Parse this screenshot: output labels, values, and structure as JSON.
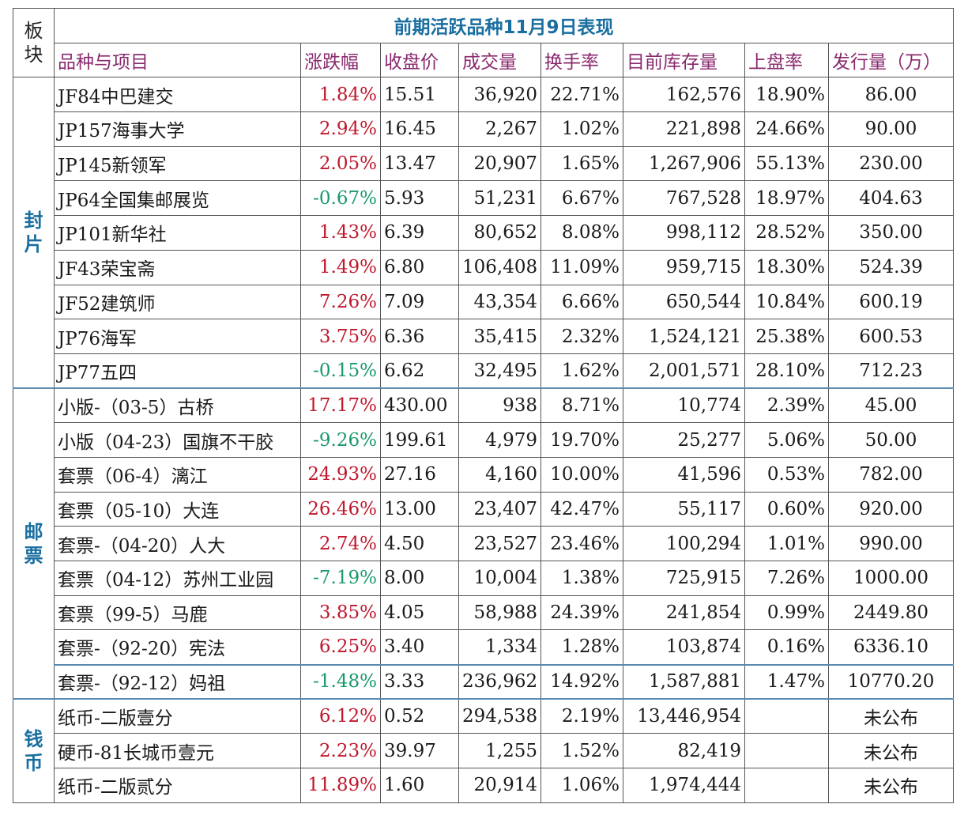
{
  "title": "前期活跃品种11月9日表现",
  "headers": {
    "sector": "板块",
    "name": "品种与项目",
    "change": "涨跌幅",
    "close": "收盘价",
    "volume": "成交量",
    "turnover": "换手率",
    "inventory": "目前库存量",
    "listing_rate": "上盘率",
    "issue": "发行量（万）"
  },
  "sectors": {
    "fengpian": "封片",
    "youpiao": "邮票",
    "qianbi": "钱币"
  },
  "rows": [
    {
      "name": "JF84中巴建交",
      "change": "1.84%",
      "close": "15.51",
      "volume": "36,920",
      "turnover": "22.71%",
      "inventory": "162,576",
      "listing_rate": "18.90%",
      "issue": "86.00",
      "dir": "up"
    },
    {
      "name": "JP157海事大学",
      "change": "2.94%",
      "close": "16.45",
      "volume": "2,267",
      "turnover": "1.02%",
      "inventory": "221,898",
      "listing_rate": "24.66%",
      "issue": "90.00",
      "dir": "up"
    },
    {
      "name": "JP145新领军",
      "change": "2.05%",
      "close": "13.47",
      "volume": "20,907",
      "turnover": "1.65%",
      "inventory": "1,267,906",
      "listing_rate": "55.13%",
      "issue": "230.00",
      "dir": "up"
    },
    {
      "name": "JP64全国集邮展览",
      "change": "-0.67%",
      "close": "5.93",
      "volume": "51,231",
      "turnover": "6.67%",
      "inventory": "767,528",
      "listing_rate": "18.97%",
      "issue": "404.63",
      "dir": "down"
    },
    {
      "name": "JP101新华社",
      "change": "1.43%",
      "close": "6.39",
      "volume": "80,652",
      "turnover": "8.08%",
      "inventory": "998,112",
      "listing_rate": "28.52%",
      "issue": "350.00",
      "dir": "up"
    },
    {
      "name": "JF43荣宝斋",
      "change": "1.49%",
      "close": "6.80",
      "volume": "106,408",
      "turnover": "11.09%",
      "inventory": "959,715",
      "listing_rate": "18.30%",
      "issue": "524.39",
      "dir": "up"
    },
    {
      "name": "JF52建筑师",
      "change": "7.26%",
      "close": "7.09",
      "volume": "43,354",
      "turnover": "6.66%",
      "inventory": "650,544",
      "listing_rate": "10.84%",
      "issue": "600.19",
      "dir": "up"
    },
    {
      "name": "JP76海军",
      "change": "3.75%",
      "close": "6.36",
      "volume": "35,415",
      "turnover": "2.32%",
      "inventory": "1,524,121",
      "listing_rate": "25.38%",
      "issue": "600.53",
      "dir": "up"
    },
    {
      "name": "JP77五四",
      "change": "-0.15%",
      "close": "6.62",
      "volume": "32,495",
      "turnover": "1.62%",
      "inventory": "2,001,571",
      "listing_rate": "28.10%",
      "issue": "712.23",
      "dir": "down"
    },
    {
      "name": "小版-（03-5）古桥",
      "change": "17.17%",
      "close": "430.00",
      "volume": "938",
      "turnover": "8.71%",
      "inventory": "10,774",
      "listing_rate": "2.39%",
      "issue": "45.00",
      "dir": "up"
    },
    {
      "name": "小版（04-23）国旗不干胶",
      "change": "-9.26%",
      "close": "199.61",
      "volume": "4,979",
      "turnover": "19.70%",
      "inventory": "25,277",
      "listing_rate": "5.06%",
      "issue": "50.00",
      "dir": "down"
    },
    {
      "name": "套票（06-4）漓江",
      "change": "24.93%",
      "close": "27.16",
      "volume": "4,160",
      "turnover": "10.00%",
      "inventory": "41,596",
      "listing_rate": "0.53%",
      "issue": "782.00",
      "dir": "up"
    },
    {
      "name": "套票（05-10）大连",
      "change": "26.46%",
      "close": "13.00",
      "volume": "23,407",
      "turnover": "42.47%",
      "inventory": "55,117",
      "listing_rate": "0.60%",
      "issue": "920.00",
      "dir": "up"
    },
    {
      "name": "套票-（04-20）人大",
      "change": "2.74%",
      "close": "4.50",
      "volume": "23,527",
      "turnover": "23.46%",
      "inventory": "100,294",
      "listing_rate": "1.01%",
      "issue": "990.00",
      "dir": "up"
    },
    {
      "name": "套票（04-12）苏州工业园",
      "change": "-7.19%",
      "close": "8.00",
      "volume": "10,004",
      "turnover": "1.38%",
      "inventory": "725,915",
      "listing_rate": "7.26%",
      "issue": "1000.00",
      "dir": "down"
    },
    {
      "name": "套票（99-5）马鹿",
      "change": "3.85%",
      "close": "4.05",
      "volume": "58,988",
      "turnover": "24.39%",
      "inventory": "241,854",
      "listing_rate": "0.99%",
      "issue": "2449.80",
      "dir": "up"
    },
    {
      "name": "套票-（92-20）宪法",
      "change": "6.25%",
      "close": "3.40",
      "volume": "1,334",
      "turnover": "1.28%",
      "inventory": "103,874",
      "listing_rate": "0.16%",
      "issue": "6336.10",
      "dir": "up"
    },
    {
      "name": "套票-（92-12）妈祖",
      "change": "-1.48%",
      "close": "3.33",
      "volume": "236,962",
      "turnover": "14.92%",
      "inventory": "1,587,881",
      "listing_rate": "1.47%",
      "issue": "10770.20",
      "dir": "down"
    },
    {
      "name": "纸币-二版壹分",
      "change": "6.12%",
      "close": "0.52",
      "volume": "294,538",
      "turnover": "2.19%",
      "inventory": "13,446,954",
      "listing_rate": "",
      "issue": "未公布",
      "dir": "up"
    },
    {
      "name": "硬币-81长城币壹元",
      "change": "2.23%",
      "close": "39.97",
      "volume": "1,255",
      "turnover": "1.52%",
      "inventory": "82,419",
      "listing_rate": "",
      "issue": "未公布",
      "dir": "up"
    },
    {
      "name": "纸币-二版贰分",
      "change": "11.89%",
      "close": "1.60",
      "volume": "20,914",
      "turnover": "1.06%",
      "inventory": "1,974,444",
      "listing_rate": "",
      "issue": "未公布",
      "dir": "up"
    }
  ],
  "colors": {
    "title": "#1a6fa0",
    "header_text": "#8a2a6e",
    "rise": "#c0182c",
    "fall": "#1a9a6a",
    "separator": "#5b89b0"
  }
}
